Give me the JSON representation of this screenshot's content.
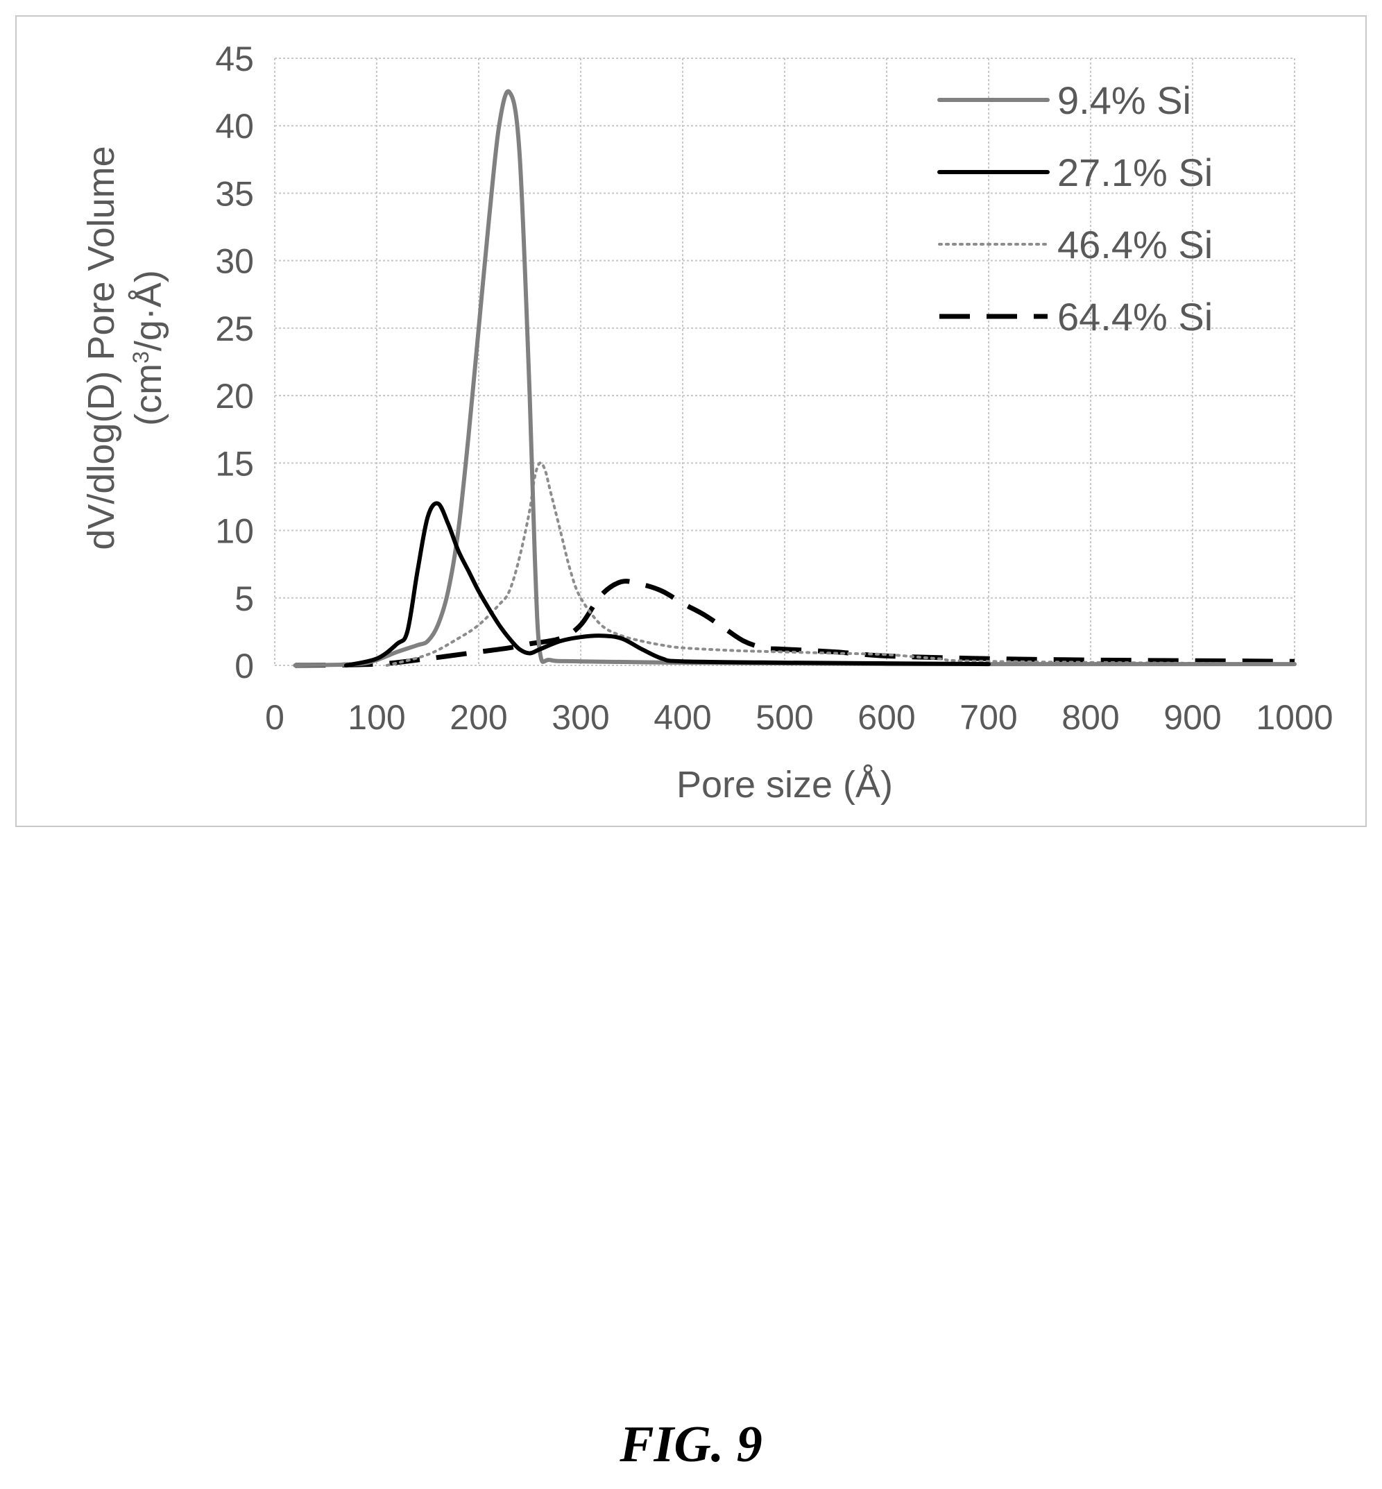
{
  "chart_data": {
    "type": "line",
    "title": "",
    "xlabel": "Pore size (Å)",
    "ylabel_line1": "dV/dlog(D) Pore Volume",
    "ylabel_line2_pre": "(cm",
    "ylabel_line2_sup": "3",
    "ylabel_line2_post": "/g·Å)",
    "xlim": [
      0,
      1000
    ],
    "ylim": [
      0,
      45
    ],
    "x_ticks": [
      0,
      100,
      200,
      300,
      400,
      500,
      600,
      700,
      800,
      900,
      1000
    ],
    "y_ticks": [
      0,
      5,
      10,
      15,
      20,
      25,
      30,
      35,
      40,
      45
    ],
    "x_tick_labels": [
      "0",
      "100",
      "200",
      "300",
      "400",
      "500",
      "600",
      "700",
      "800",
      "900",
      "1000"
    ],
    "y_tick_labels": [
      "0",
      "5",
      "10",
      "15",
      "20",
      "25",
      "30",
      "35",
      "40",
      "45"
    ],
    "grid": "dotted both axes",
    "legend_position": "top-right",
    "series": [
      {
        "name": "9.4% Si",
        "color": "#808080",
        "style": "solid",
        "x": [
          20,
          80,
          100,
          120,
          140,
          150,
          160,
          170,
          180,
          190,
          200,
          210,
          220,
          230,
          240,
          250,
          255,
          260,
          270,
          300,
          400,
          500,
          600,
          700,
          800,
          900,
          1000
        ],
        "y": [
          0,
          0.1,
          0.4,
          1.0,
          1.5,
          1.8,
          3.0,
          5.5,
          10,
          17,
          25,
          33,
          40,
          42.5,
          38,
          20,
          8,
          1.0,
          0.4,
          0.3,
          0.2,
          0.15,
          0.1,
          0.1,
          0.1,
          0.1,
          0.1
        ]
      },
      {
        "name": "27.1% Si",
        "color": "#000000",
        "style": "solid",
        "x": [
          70,
          100,
          120,
          130,
          140,
          150,
          160,
          170,
          180,
          190,
          200,
          210,
          220,
          230,
          240,
          250,
          260,
          280,
          300,
          320,
          340,
          360,
          380,
          400,
          500,
          600,
          700
        ],
        "y": [
          0,
          0.5,
          1.6,
          2.5,
          7,
          11,
          12,
          10.5,
          8.5,
          7,
          5.5,
          4.2,
          3,
          2,
          1.2,
          0.9,
          1.2,
          1.8,
          2.1,
          2.2,
          2.0,
          1.2,
          0.5,
          0.3,
          0.2,
          0.15,
          0.1
        ]
      },
      {
        "name": "46.4% Si",
        "color": "#8c8c8c",
        "style": "dotted",
        "x": [
          110,
          150,
          180,
          200,
          220,
          230,
          240,
          250,
          255,
          260,
          265,
          270,
          280,
          290,
          300,
          320,
          340,
          360,
          380,
          400,
          450,
          500,
          550,
          600,
          650,
          700,
          1000
        ],
        "y": [
          0,
          0.8,
          2.0,
          3.0,
          4.5,
          5.5,
          8,
          11.5,
          14,
          15,
          14.5,
          13,
          10,
          7,
          5,
          3,
          2.2,
          1.8,
          1.5,
          1.3,
          1.1,
          1.0,
          0.9,
          0.8,
          0.5,
          0.3,
          0.1
        ]
      },
      {
        "name": "64.4% Si",
        "color": "#000000",
        "style": "dashed",
        "x": [
          20,
          100,
          150,
          200,
          230,
          250,
          280,
          300,
          320,
          340,
          360,
          380,
          400,
          420,
          440,
          460,
          480,
          500,
          550,
          600,
          700,
          800,
          900,
          1000
        ],
        "y": [
          0,
          0.1,
          0.5,
          1.0,
          1.3,
          1.6,
          2.0,
          3.0,
          5.2,
          6.2,
          6.0,
          5.5,
          4.6,
          3.8,
          2.8,
          1.8,
          1.3,
          1.2,
          1.0,
          0.7,
          0.5,
          0.4,
          0.35,
          0.3
        ]
      }
    ]
  },
  "caption": "FIG. 9"
}
